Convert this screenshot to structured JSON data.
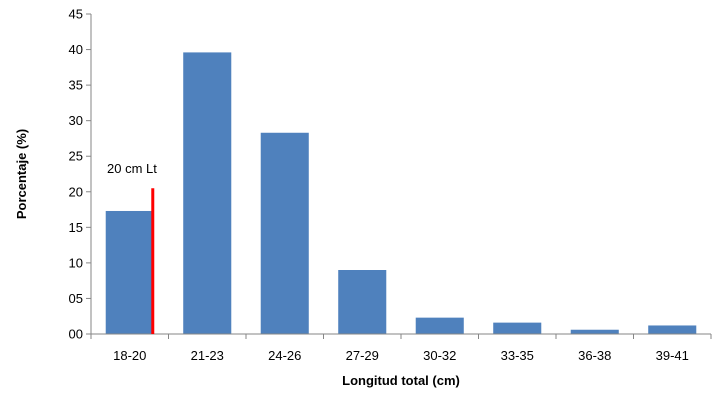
{
  "chart_data": {
    "type": "bar",
    "categories": [
      "18-20",
      "21-23",
      "24-26",
      "27-29",
      "30-32",
      "33-35",
      "36-38",
      "39-41"
    ],
    "values": [
      17.3,
      39.6,
      28.3,
      9.0,
      2.3,
      1.6,
      0.6,
      1.2
    ],
    "title": "",
    "xlabel": "Longitud total (cm)",
    "ylabel": "Porcentaje (%)",
    "ylim": [
      0,
      45
    ],
    "yticks": [
      "00",
      "05",
      "10",
      "15",
      "20",
      "25",
      "30",
      "35",
      "40",
      "45"
    ],
    "grid": false,
    "legend": "none",
    "bar_color": "#4f81bd",
    "annotation": {
      "text": "20 cm Lt",
      "value": 20.5,
      "category_index": 0,
      "color": "#ff0000"
    }
  }
}
